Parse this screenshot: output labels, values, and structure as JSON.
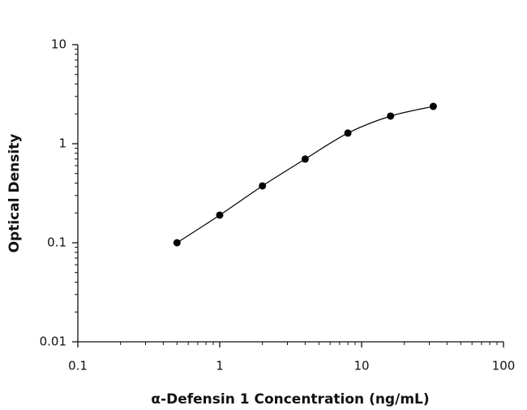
{
  "chart_data": {
    "type": "scatter",
    "xlabel": "α-Defensin 1 Concentration (ng/mL)",
    "ylabel": "Optical Density",
    "x": [
      0.5,
      1,
      2,
      4,
      8,
      16,
      32
    ],
    "series": [
      {
        "color": "#000000",
        "values": [
          0.1,
          0.19,
          0.375,
          0.7,
          1.28,
          1.9,
          2.38
        ]
      }
    ],
    "xlim": [
      0.1,
      100
    ],
    "ylim": [
      0.01,
      10
    ],
    "xticks": [
      0.1,
      1,
      10,
      100
    ],
    "yticks": [
      0.01,
      0.1,
      1,
      10
    ],
    "xscale": "log",
    "yscale": "log",
    "fit_curve": true
  }
}
